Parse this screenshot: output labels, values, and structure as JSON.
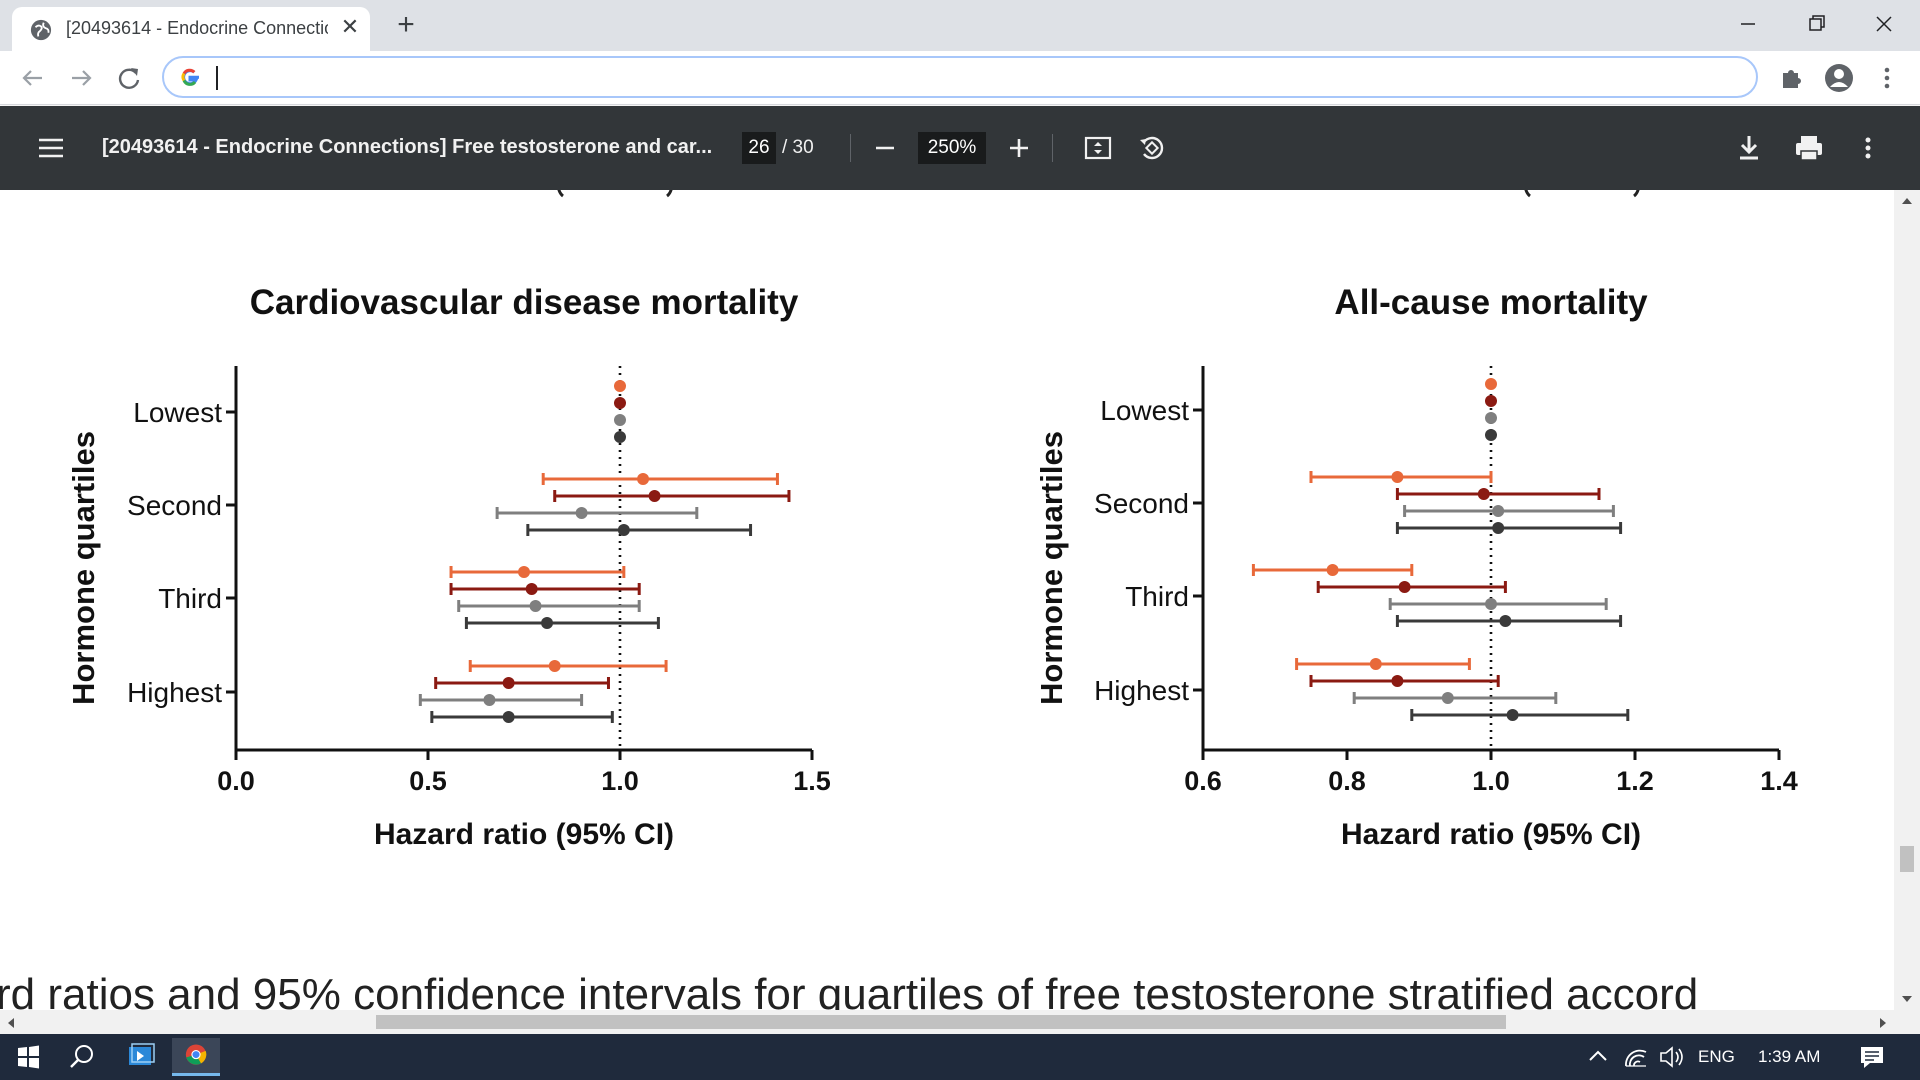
{
  "browser": {
    "tab": {
      "title": "[20493614 - Endocrine Connectio",
      "favicon": "globe-icon"
    },
    "omnibox": {
      "value": "",
      "icon": "google-g-icon"
    }
  },
  "pdf_viewer": {
    "title": "[20493614 - Endocrine Connections] Free testosterone and car...",
    "current_page": "26",
    "total_pages": "/ 30",
    "zoom": "250%"
  },
  "document": {
    "caption": "rd ratios and 95% confidence intervals for quartiles of free testosterone stratified accord"
  },
  "chart_data": [
    {
      "type": "forest",
      "title": "Cardiovascular disease mortality",
      "xlabel": "Hazard ratio (95% CI)",
      "ylabel": "Hormone quartiles",
      "xlim": [
        0.0,
        1.5
      ],
      "xticks": [
        "0.0",
        "0.5",
        "1.0",
        "1.5"
      ],
      "reference_line": 1.0,
      "categories": [
        "Lowest",
        "Second",
        "Third",
        "Highest"
      ],
      "series": [
        {
          "color": "#e8693a",
          "points": [
            {
              "cat": "Lowest",
              "hr": 1.0
            },
            {
              "cat": "Second",
              "hr": 1.06,
              "lo": 0.8,
              "hi": 1.41
            },
            {
              "cat": "Third",
              "hr": 0.75,
              "lo": 0.56,
              "hi": 1.01
            },
            {
              "cat": "Highest",
              "hr": 0.83,
              "lo": 0.61,
              "hi": 1.12
            }
          ]
        },
        {
          "color": "#8b1a12",
          "points": [
            {
              "cat": "Lowest",
              "hr": 1.0
            },
            {
              "cat": "Second",
              "hr": 1.09,
              "lo": 0.83,
              "hi": 1.44
            },
            {
              "cat": "Third",
              "hr": 0.77,
              "lo": 0.56,
              "hi": 1.05
            },
            {
              "cat": "Highest",
              "hr": 0.71,
              "lo": 0.52,
              "hi": 0.97
            }
          ]
        },
        {
          "color": "#7f7f7f",
          "points": [
            {
              "cat": "Lowest",
              "hr": 1.0
            },
            {
              "cat": "Second",
              "hr": 0.9,
              "lo": 0.68,
              "hi": 1.2
            },
            {
              "cat": "Third",
              "hr": 0.78,
              "lo": 0.58,
              "hi": 1.05
            },
            {
              "cat": "Highest",
              "hr": 0.66,
              "lo": 0.48,
              "hi": 0.9
            }
          ]
        },
        {
          "color": "#3a3a3a",
          "points": [
            {
              "cat": "Lowest",
              "hr": 1.0
            },
            {
              "cat": "Second",
              "hr": 1.01,
              "lo": 0.76,
              "hi": 1.34
            },
            {
              "cat": "Third",
              "hr": 0.81,
              "lo": 0.6,
              "hi": 1.1
            },
            {
              "cat": "Highest",
              "hr": 0.71,
              "lo": 0.51,
              "hi": 0.98
            }
          ]
        }
      ]
    },
    {
      "type": "forest",
      "title": "All-cause mortality",
      "xlabel": "Hazard ratio (95% CI)",
      "ylabel": "Hormone quartiles",
      "xlim": [
        0.6,
        1.4
      ],
      "xticks": [
        "0.6",
        "0.8",
        "1.0",
        "1.2",
        "1.4"
      ],
      "reference_line": 1.0,
      "categories": [
        "Lowest",
        "Second",
        "Third",
        "Highest"
      ],
      "series": [
        {
          "color": "#e8693a",
          "points": [
            {
              "cat": "Lowest",
              "hr": 1.0
            },
            {
              "cat": "Second",
              "hr": 0.87,
              "lo": 0.75,
              "hi": 1.0
            },
            {
              "cat": "Third",
              "hr": 0.78,
              "lo": 0.67,
              "hi": 0.89
            },
            {
              "cat": "Highest",
              "hr": 0.84,
              "lo": 0.73,
              "hi": 0.97
            }
          ]
        },
        {
          "color": "#8b1a12",
          "points": [
            {
              "cat": "Lowest",
              "hr": 1.0
            },
            {
              "cat": "Second",
              "hr": 0.99,
              "lo": 0.87,
              "hi": 1.15
            },
            {
              "cat": "Third",
              "hr": 0.88,
              "lo": 0.76,
              "hi": 1.02
            },
            {
              "cat": "Highest",
              "hr": 0.87,
              "lo": 0.75,
              "hi": 1.01
            }
          ]
        },
        {
          "color": "#7f7f7f",
          "points": [
            {
              "cat": "Lowest",
              "hr": 1.0
            },
            {
              "cat": "Second",
              "hr": 1.01,
              "lo": 0.88,
              "hi": 1.17
            },
            {
              "cat": "Third",
              "hr": 1.0,
              "lo": 0.86,
              "hi": 1.16
            },
            {
              "cat": "Highest",
              "hr": 0.94,
              "lo": 0.81,
              "hi": 1.09
            }
          ]
        },
        {
          "color": "#3a3a3a",
          "points": [
            {
              "cat": "Lowest",
              "hr": 1.0
            },
            {
              "cat": "Second",
              "hr": 1.01,
              "lo": 0.87,
              "hi": 1.18
            },
            {
              "cat": "Third",
              "hr": 1.02,
              "lo": 0.87,
              "hi": 1.18
            },
            {
              "cat": "Highest",
              "hr": 1.03,
              "lo": 0.89,
              "hi": 1.19
            }
          ]
        }
      ]
    }
  ],
  "taskbar": {
    "language": "ENG",
    "time": "1:39 AM"
  }
}
